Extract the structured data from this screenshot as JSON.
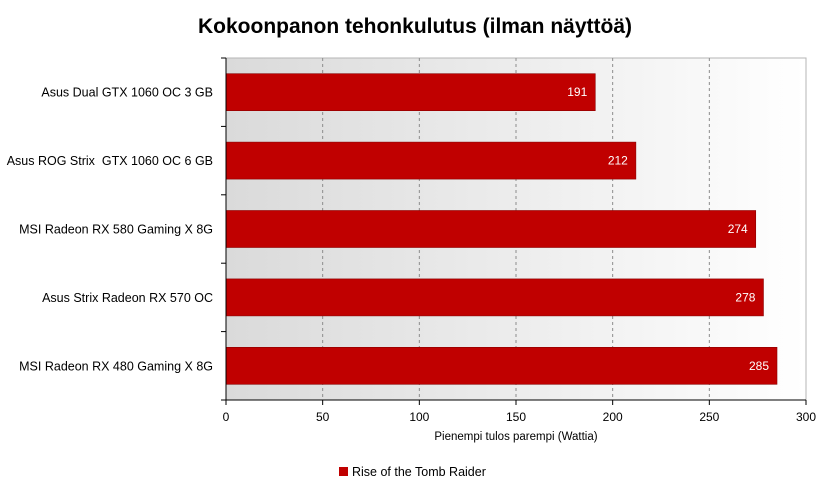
{
  "chart_data": {
    "type": "bar",
    "orientation": "horizontal",
    "title": "Kokoonpanon tehonkulutus (ilman näyttöä)",
    "xlabel": "Pienempi tulos parempi (Wattia)",
    "ylabel": "",
    "categories": [
      "Asus Dual GTX 1060 OC 3 GB",
      "Asus ROG Strix  GTX 1060 OC 6 GB",
      "MSI Radeon RX 580 Gaming X 8G",
      "Asus Strix Radeon RX 570 OC",
      "MSI Radeon RX 480 Gaming X 8G"
    ],
    "series": [
      {
        "name": "Rise of the Tomb Raider",
        "values": [
          191,
          212,
          274,
          278,
          285
        ],
        "color": "#c00000"
      }
    ],
    "xlim": [
      0,
      300
    ],
    "xticks": [
      0,
      50,
      100,
      150,
      200,
      250,
      300
    ],
    "grid": "vertical dashed",
    "legend_position": "bottom",
    "data_labels": true
  }
}
